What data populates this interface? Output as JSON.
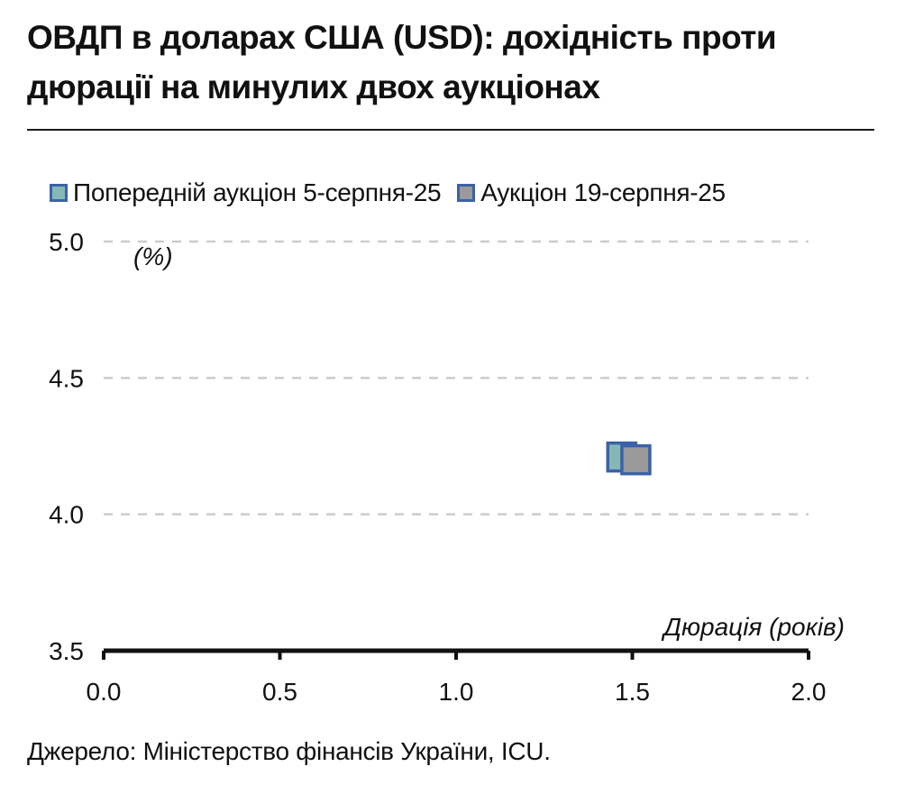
{
  "title": "ОВДП в доларах США (USD): дохідність проти дюрації на минулих двох аукціонах",
  "source": "Джерело: Міністерство фінансів України, ICU.",
  "colors": {
    "series_prev_fill": "#85b8b4",
    "series_curr_fill": "#9a9a9a",
    "marker_border": "#3b62a6",
    "grid": "#cccccc",
    "axis": "#111111"
  },
  "chart_data": {
    "type": "scatter",
    "xlabel": "Дюрація (років)",
    "ylabel": "(%)",
    "xlim": [
      0.0,
      2.0
    ],
    "ylim": [
      3.5,
      5.0
    ],
    "x_ticks": [
      "0.0",
      "0.5",
      "1.0",
      "1.5",
      "2.0"
    ],
    "y_ticks": [
      "3.5",
      "4.0",
      "4.5",
      "5.0"
    ],
    "grid": "horizontal dashed",
    "legend_position": "top",
    "series": [
      {
        "name": "Попередній аукціон 5-серпня-25",
        "color": "#85b8b4",
        "points": [
          {
            "x": 1.47,
            "y": 4.21
          }
        ]
      },
      {
        "name": "Аукціон 19-серпня-25",
        "color": "#9a9a9a",
        "points": [
          {
            "x": 1.51,
            "y": 4.2
          }
        ]
      }
    ]
  }
}
